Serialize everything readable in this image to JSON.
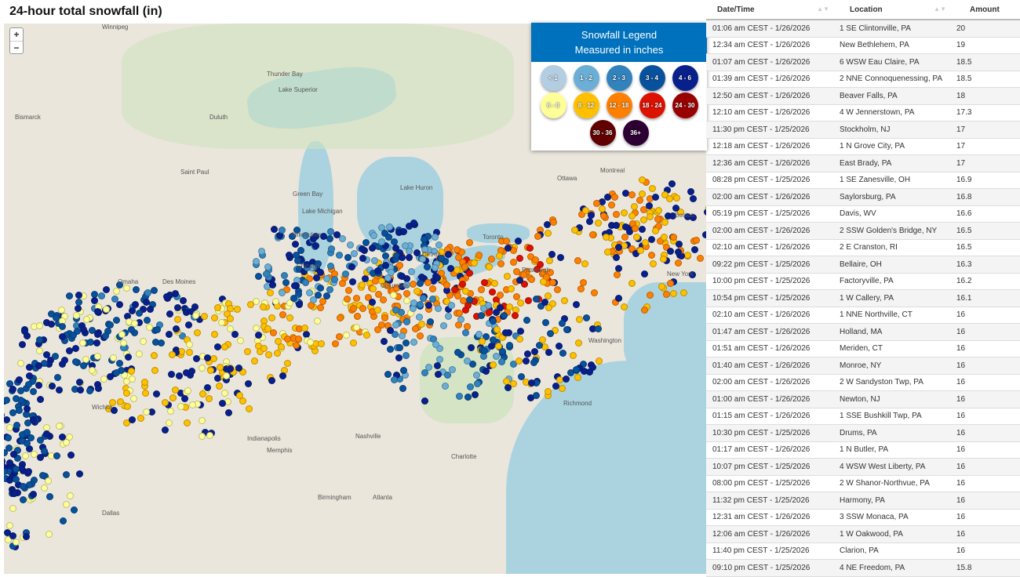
{
  "title": "24-hour total snowfall (in)",
  "zoom": {
    "in": "+",
    "out": "−"
  },
  "legend": {
    "title": "Snowfall Legend",
    "subtitle": "Measured in inches",
    "bins": [
      {
        "label": "< 1",
        "color": "#b3cde3"
      },
      {
        "label": "1 - 2",
        "color": "#6baed6"
      },
      {
        "label": "2 - 3",
        "color": "#3182bd"
      },
      {
        "label": "3 - 4",
        "color": "#08519c"
      },
      {
        "label": "4 - 6",
        "color": "#08208c"
      },
      {
        "label": "6 - 8",
        "color": "#ffff99"
      },
      {
        "label": "8 - 12",
        "color": "#ffc000"
      },
      {
        "label": "12 - 18",
        "color": "#ff8000"
      },
      {
        "label": "18 - 24",
        "color": "#dd1100"
      },
      {
        "label": "24 - 30",
        "color": "#990000"
      },
      {
        "label": "30 - 36",
        "color": "#600000"
      },
      {
        "label": "36+",
        "color": "#2d0033"
      }
    ]
  },
  "cities": [
    "Winnipeg",
    "Thunder Bay",
    "Lake Superior",
    "Duluth",
    "Bismarck",
    "Saint Paul",
    "Green Bay",
    "Milwaukee",
    "Chicago",
    "Detroit",
    "Toronto",
    "Ottawa",
    "Montreal",
    "Omaha",
    "Des Moines",
    "Indianapolis",
    "Columbus",
    "Pittsburgh",
    "New York",
    "Boston",
    "Washington",
    "Nashville",
    "Charlotte",
    "Atlanta",
    "Memphis",
    "Dallas",
    "Wichita",
    "Birmingham",
    "Richmond",
    "Lake Michigan",
    "Lake Huron"
  ],
  "table": {
    "headers": [
      "Date/Time",
      "Location",
      "Amount"
    ],
    "rows": [
      [
        "01:06 am CEST - 1/26/2026",
        "1 SE Clintonville, PA",
        "20"
      ],
      [
        "12:34 am CEST - 1/26/2026",
        "New Bethlehem, PA",
        "19"
      ],
      [
        "01:07 am CEST - 1/26/2026",
        "6 WSW Eau Claire, PA",
        "18.5"
      ],
      [
        "01:39 am CEST - 1/26/2026",
        "2 NNE Connoquenessing, PA",
        "18.5"
      ],
      [
        "12:50 am CEST - 1/26/2026",
        "Beaver Falls, PA",
        "18"
      ],
      [
        "12:10 am CEST - 1/26/2026",
        "4 W Jennerstown, PA",
        "17.3"
      ],
      [
        "11:30 pm CEST - 1/25/2026",
        "Stockholm, NJ",
        "17"
      ],
      [
        "12:18 am CEST - 1/26/2026",
        "1 N Grove City, PA",
        "17"
      ],
      [
        "12:36 am CEST - 1/26/2026",
        "East Brady, PA",
        "17"
      ],
      [
        "08:28 pm CEST - 1/25/2026",
        "1 SE Zanesville, OH",
        "16.9"
      ],
      [
        "02:00 am CEST - 1/26/2026",
        "Saylorsburg, PA",
        "16.8"
      ],
      [
        "05:19 pm CEST - 1/25/2026",
        "Davis, WV",
        "16.6"
      ],
      [
        "02:00 am CEST - 1/26/2026",
        "2 SSW Golden's Bridge, NY",
        "16.5"
      ],
      [
        "02:10 am CEST - 1/26/2026",
        "2 E Cranston, RI",
        "16.5"
      ],
      [
        "09:22 pm CEST - 1/25/2026",
        "Bellaire, OH",
        "16.3"
      ],
      [
        "10:00 pm CEST - 1/25/2026",
        "Factoryville, PA",
        "16.2"
      ],
      [
        "10:54 pm CEST - 1/25/2026",
        "1 W Callery, PA",
        "16.1"
      ],
      [
        "02:10 am CEST - 1/26/2026",
        "1 NNE Northville, CT",
        "16"
      ],
      [
        "01:47 am CEST - 1/26/2026",
        "Holland, MA",
        "16"
      ],
      [
        "01:51 am CEST - 1/26/2026",
        "Meriden, CT",
        "16"
      ],
      [
        "01:40 am CEST - 1/26/2026",
        "Monroe, NY",
        "16"
      ],
      [
        "02:00 am CEST - 1/26/2026",
        "2 W Sandyston Twp, PA",
        "16"
      ],
      [
        "01:00 am CEST - 1/26/2026",
        "Newton, NJ",
        "16"
      ],
      [
        "01:15 am CEST - 1/26/2026",
        "1 SSE Bushkill Twp, PA",
        "16"
      ],
      [
        "10:30 pm CEST - 1/25/2026",
        "Drums, PA",
        "16"
      ],
      [
        "01:17 am CEST - 1/26/2026",
        "1 N Butler, PA",
        "16"
      ],
      [
        "10:07 pm CEST - 1/25/2026",
        "4 WSW West Liberty, PA",
        "16"
      ],
      [
        "08:00 pm CEST - 1/25/2026",
        "2 W Shanor-Northvue, PA",
        "16"
      ],
      [
        "11:32 pm CEST - 1/25/2026",
        "Harmony, PA",
        "16"
      ],
      [
        "12:31 am CEST - 1/26/2026",
        "3 SSW Monaca, PA",
        "16"
      ],
      [
        "12:06 am CEST - 1/26/2026",
        "1 W Oakwood, PA",
        "16"
      ],
      [
        "11:40 pm CEST - 1/25/2026",
        "Clarion, PA",
        "16"
      ],
      [
        "09:10 pm CEST - 1/25/2026",
        "4 NE Freedom, PA",
        "15.8"
      ]
    ]
  }
}
